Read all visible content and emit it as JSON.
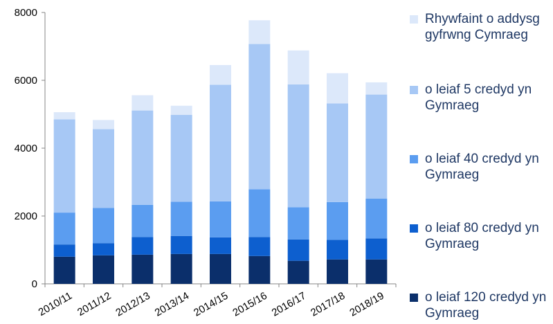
{
  "chart_data": {
    "type": "bar",
    "stacked": true,
    "categories": [
      "2010/11",
      "2011/12",
      "2012/13",
      "2013/14",
      "2014/15",
      "2015/16",
      "2016/17",
      "2017/18",
      "2018/19"
    ],
    "series": [
      {
        "name": "o leiaf 120 credyd yn Gymraeg",
        "color": "#0B2F6B",
        "values": [
          800,
          840,
          860,
          880,
          880,
          820,
          680,
          720,
          720
        ]
      },
      {
        "name": "o leiaf 80 credyd yn Gymraeg",
        "color": "#0D5FCF",
        "values": [
          360,
          360,
          520,
          530,
          490,
          560,
          630,
          580,
          620
        ]
      },
      {
        "name": "o leiaf 40 credyd yn Gymraeg",
        "color": "#5B9DF0",
        "values": [
          940,
          1040,
          950,
          1010,
          1060,
          1410,
          950,
          1110,
          1170
        ]
      },
      {
        "name": "o leiaf 5 credyd yn Gymraeg",
        "color": "#A7C8F5",
        "values": [
          2750,
          2320,
          2780,
          2560,
          3440,
          4280,
          3620,
          2910,
          3070
        ]
      },
      {
        "name": "Rhywfaint o addysg gyfrwng Cymraeg",
        "color": "#DCE8FA",
        "values": [
          210,
          270,
          450,
          270,
          580,
          700,
          1000,
          890,
          360
        ]
      }
    ],
    "ylim": [
      0,
      8000
    ],
    "yticks": [
      0,
      2000,
      4000,
      6000,
      8000
    ],
    "grid": false,
    "legend_position": "right"
  }
}
